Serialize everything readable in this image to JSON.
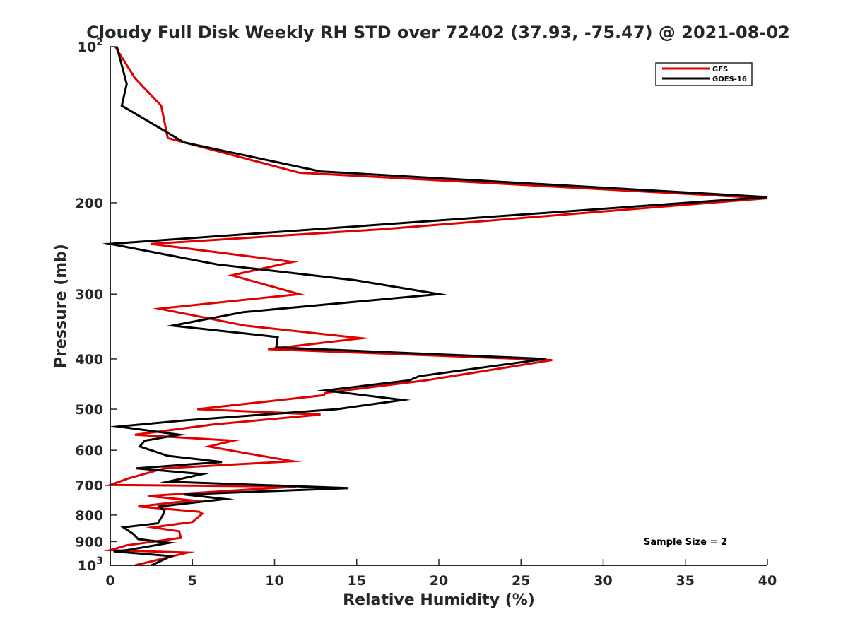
{
  "chart_data": {
    "type": "line",
    "title": "Cloudy Full Disk Weekly RH STD over 72402 (37.93, -75.47) @ 2021-08-02",
    "xlabel": "Relative Humidity (%)",
    "ylabel": "Pressure (mb)",
    "xlim": [
      0,
      40
    ],
    "ylim": [
      100,
      1000
    ],
    "yscale": "log",
    "y_reversed": true,
    "grid": false,
    "legend_position": "top-right",
    "x_ticks": [
      0,
      5,
      10,
      15,
      20,
      25,
      30,
      35,
      40
    ],
    "x_tick_labels": [
      "0",
      "5",
      "10",
      "15",
      "20",
      "25",
      "30",
      "35",
      "40"
    ],
    "y_ticks": [
      100,
      200,
      300,
      400,
      500,
      600,
      700,
      800,
      900,
      1000
    ],
    "y_tick_labels": [
      {
        "base": "10",
        "exp": "2"
      },
      {
        "base": "200",
        "exp": ""
      },
      {
        "base": "300",
        "exp": ""
      },
      {
        "base": "400",
        "exp": ""
      },
      {
        "base": "500",
        "exp": ""
      },
      {
        "base": "600",
        "exp": ""
      },
      {
        "base": "700",
        "exp": ""
      },
      {
        "base": "800",
        "exp": ""
      },
      {
        "base": "900",
        "exp": ""
      },
      {
        "base": "10",
        "exp": "3"
      }
    ],
    "annotation": "Sample Size = 2",
    "series": [
      {
        "name": "GFS",
        "color": "#e00000",
        "points": [
          [
            0.3,
            100
          ],
          [
            1.5,
            115
          ],
          [
            3.1,
            130
          ],
          [
            3.5,
            150
          ],
          [
            11.5,
            175
          ],
          [
            40,
            196
          ],
          [
            16.5,
            225
          ],
          [
            2.5,
            240
          ],
          [
            11.1,
            260
          ],
          [
            7.4,
            276
          ],
          [
            11.5,
            300
          ],
          [
            3.0,
            320
          ],
          [
            8.2,
            345
          ],
          [
            15.3,
            365
          ],
          [
            9.6,
            383
          ],
          [
            26.9,
            402
          ],
          [
            19.2,
            440
          ],
          [
            13.1,
            465
          ],
          [
            13.0,
            470
          ],
          [
            5.3,
            500
          ],
          [
            12.8,
            512
          ],
          [
            6.3,
            535
          ],
          [
            1.5,
            560
          ],
          [
            7.5,
            575
          ],
          [
            6.0,
            590
          ],
          [
            7.9,
            605
          ],
          [
            11.1,
            630
          ],
          [
            3.3,
            650
          ],
          [
            1.1,
            680
          ],
          [
            0,
            700
          ],
          [
            11.3,
            705
          ],
          [
            2.3,
            735
          ],
          [
            5.0,
            750
          ],
          [
            1.7,
            770
          ],
          [
            5.4,
            788
          ],
          [
            5.6,
            795
          ],
          [
            5.0,
            825
          ],
          [
            2.6,
            845
          ],
          [
            4.2,
            860
          ],
          [
            4.3,
            885
          ],
          [
            1.0,
            915
          ],
          [
            0,
            935
          ],
          [
            4.7,
            945
          ],
          [
            1.5,
            1000
          ]
        ]
      },
      {
        "name": "GOES-16",
        "color": "#000000",
        "points": [
          [
            0.4,
            100
          ],
          [
            1.0,
            118
          ],
          [
            0.7,
            130
          ],
          [
            4.5,
            153
          ],
          [
            12.8,
            174
          ],
          [
            40,
            195
          ],
          [
            0,
            240
          ],
          [
            6.5,
            263
          ],
          [
            14.9,
            282
          ],
          [
            20.0,
            300
          ],
          [
            8.1,
            325
          ],
          [
            3.8,
            345
          ],
          [
            10.2,
            363
          ],
          [
            10.1,
            380
          ],
          [
            26.5,
            400
          ],
          [
            18.8,
            432
          ],
          [
            18.2,
            440
          ],
          [
            13.1,
            460
          ],
          [
            17.8,
            480
          ],
          [
            13.8,
            500
          ],
          [
            4.7,
            525
          ],
          [
            0.5,
            540
          ],
          [
            4.2,
            560
          ],
          [
            2.1,
            575
          ],
          [
            1.8,
            590
          ],
          [
            3.5,
            615
          ],
          [
            6.8,
            632
          ],
          [
            1.6,
            650
          ],
          [
            5.6,
            667
          ],
          [
            3.5,
            690
          ],
          [
            14.5,
            710
          ],
          [
            4.5,
            730
          ],
          [
            7.0,
            745
          ],
          [
            3.0,
            770
          ],
          [
            3.3,
            785
          ],
          [
            3.2,
            800
          ],
          [
            2.9,
            830
          ],
          [
            0.8,
            845
          ],
          [
            1.4,
            870
          ],
          [
            1.7,
            890
          ],
          [
            3.6,
            905
          ],
          [
            1.0,
            935
          ],
          [
            0.2,
            940
          ],
          [
            3.7,
            960
          ],
          [
            2.5,
            1000
          ]
        ]
      }
    ]
  }
}
